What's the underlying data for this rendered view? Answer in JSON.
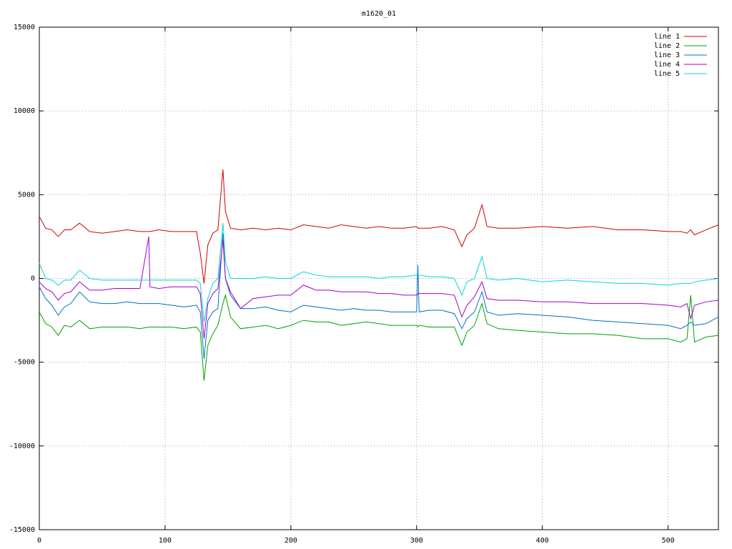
{
  "chart_data": {
    "type": "line",
    "title": "m1620_01",
    "x": [
      0,
      5,
      10,
      15,
      20,
      25,
      32,
      40,
      50,
      60,
      70,
      80,
      87,
      88,
      95,
      105,
      115,
      125,
      128,
      131,
      134,
      138,
      142,
      146,
      148,
      152,
      160,
      170,
      180,
      190,
      200,
      210,
      220,
      230,
      240,
      250,
      260,
      270,
      280,
      290,
      300,
      301,
      302,
      310,
      320,
      330,
      336,
      340,
      346,
      352,
      356,
      365,
      380,
      400,
      420,
      440,
      460,
      480,
      500,
      510,
      515,
      518,
      521,
      530,
      540
    ],
    "series": [
      {
        "name": "line 1",
        "color": "#d00000",
        "values": [
          3700,
          3000,
          2900,
          2500,
          2900,
          2900,
          3300,
          2800,
          2700,
          2800,
          2900,
          2800,
          2800,
          2800,
          2900,
          2800,
          2800,
          2800,
          1500,
          -300,
          2000,
          2700,
          2900,
          6500,
          4000,
          3000,
          2900,
          3000,
          2900,
          3000,
          2900,
          3200,
          3100,
          3000,
          3200,
          3100,
          3000,
          3100,
          3000,
          3000,
          3100,
          3000,
          3000,
          3000,
          3100,
          2900,
          1900,
          2600,
          3000,
          4400,
          3100,
          3000,
          3000,
          3100,
          3000,
          3100,
          2900,
          2900,
          2800,
          2800,
          2700,
          2900,
          2600,
          2900,
          3200
        ]
      },
      {
        "name": "line 2",
        "color": "#00a000",
        "values": [
          -2000,
          -2700,
          -2900,
          -3400,
          -2800,
          -2900,
          -2500,
          -3000,
          -2900,
          -2900,
          -2900,
          -3000,
          -2900,
          -2900,
          -2900,
          -2900,
          -3000,
          -2900,
          -3200,
          -6100,
          -4000,
          -3300,
          -2800,
          -1500,
          -1000,
          -2300,
          -3000,
          -2900,
          -2800,
          -3000,
          -2800,
          -2500,
          -2600,
          -2600,
          -2800,
          -2700,
          -2600,
          -2700,
          -2800,
          -2800,
          -2800,
          -2900,
          -2800,
          -2900,
          -2900,
          -2900,
          -4000,
          -3200,
          -2800,
          -1500,
          -2700,
          -3000,
          -3100,
          -3200,
          -3300,
          -3300,
          -3400,
          -3600,
          -3600,
          -3800,
          -3600,
          -1000,
          -3800,
          -3500,
          -3400
        ]
      },
      {
        "name": "line 3",
        "color": "#0070c0",
        "values": [
          -500,
          -1200,
          -1600,
          -2200,
          -1700,
          -1500,
          -800,
          -1400,
          -1500,
          -1500,
          -1400,
          -1500,
          -1500,
          -1500,
          -1500,
          -1600,
          -1700,
          -1600,
          -2000,
          -4800,
          -2500,
          -2000,
          -1800,
          2700,
          0,
          -1000,
          -1800,
          -1800,
          -1700,
          -1900,
          -2000,
          -1600,
          -1700,
          -1800,
          -1900,
          -1800,
          -1900,
          -1900,
          -2000,
          -2000,
          -2000,
          800,
          -2000,
          -1900,
          -1900,
          -2100,
          -3000,
          -2400,
          -2000,
          -800,
          -2000,
          -2200,
          -2100,
          -2200,
          -2300,
          -2500,
          -2600,
          -2700,
          -2800,
          -3000,
          -2800,
          -2600,
          -2800,
          -2700,
          -2300
        ]
      },
      {
        "name": "line 4",
        "color": "#a000d0",
        "values": [
          -200,
          -600,
          -800,
          -1300,
          -900,
          -800,
          -200,
          -700,
          -700,
          -600,
          -600,
          -600,
          2500,
          -500,
          -600,
          -500,
          -500,
          -500,
          -900,
          -3600,
          -1500,
          -900,
          -600,
          2300,
          0,
          -800,
          -1800,
          -1200,
          -1100,
          -1000,
          -1000,
          -400,
          -700,
          -700,
          -800,
          -800,
          -800,
          -900,
          -900,
          -1000,
          -1000,
          -900,
          -900,
          -900,
          -900,
          -1000,
          -2300,
          -1600,
          -1100,
          -200,
          -1200,
          -1300,
          -1300,
          -1400,
          -1400,
          -1500,
          -1500,
          -1500,
          -1600,
          -1700,
          -1500,
          -2400,
          -1600,
          -1400,
          -1300
        ]
      },
      {
        "name": "line 5",
        "color": "#00d8d8",
        "values": [
          900,
          0,
          -100,
          -400,
          -100,
          -100,
          500,
          0,
          -100,
          -100,
          -100,
          -100,
          -100,
          -100,
          -100,
          -100,
          -100,
          -100,
          -300,
          -2600,
          -1200,
          -300,
          0,
          3300,
          1000,
          0,
          0,
          0,
          100,
          0,
          0,
          400,
          200,
          100,
          100,
          100,
          100,
          0,
          100,
          100,
          200,
          200,
          200,
          100,
          100,
          0,
          -1000,
          -200,
          0,
          1300,
          0,
          -100,
          0,
          -200,
          -100,
          -200,
          -300,
          -300,
          -400,
          -300,
          -300,
          -300,
          -200,
          -100,
          0
        ]
      }
    ],
    "xlim": [
      0,
      540
    ],
    "xticks": [
      0,
      100,
      200,
      300,
      400,
      500
    ],
    "ylim": [
      -15000,
      15000
    ],
    "yticks": [
      -15000,
      -10000,
      -5000,
      0,
      5000,
      10000,
      15000
    ],
    "grid": true,
    "legend": "top-right"
  }
}
